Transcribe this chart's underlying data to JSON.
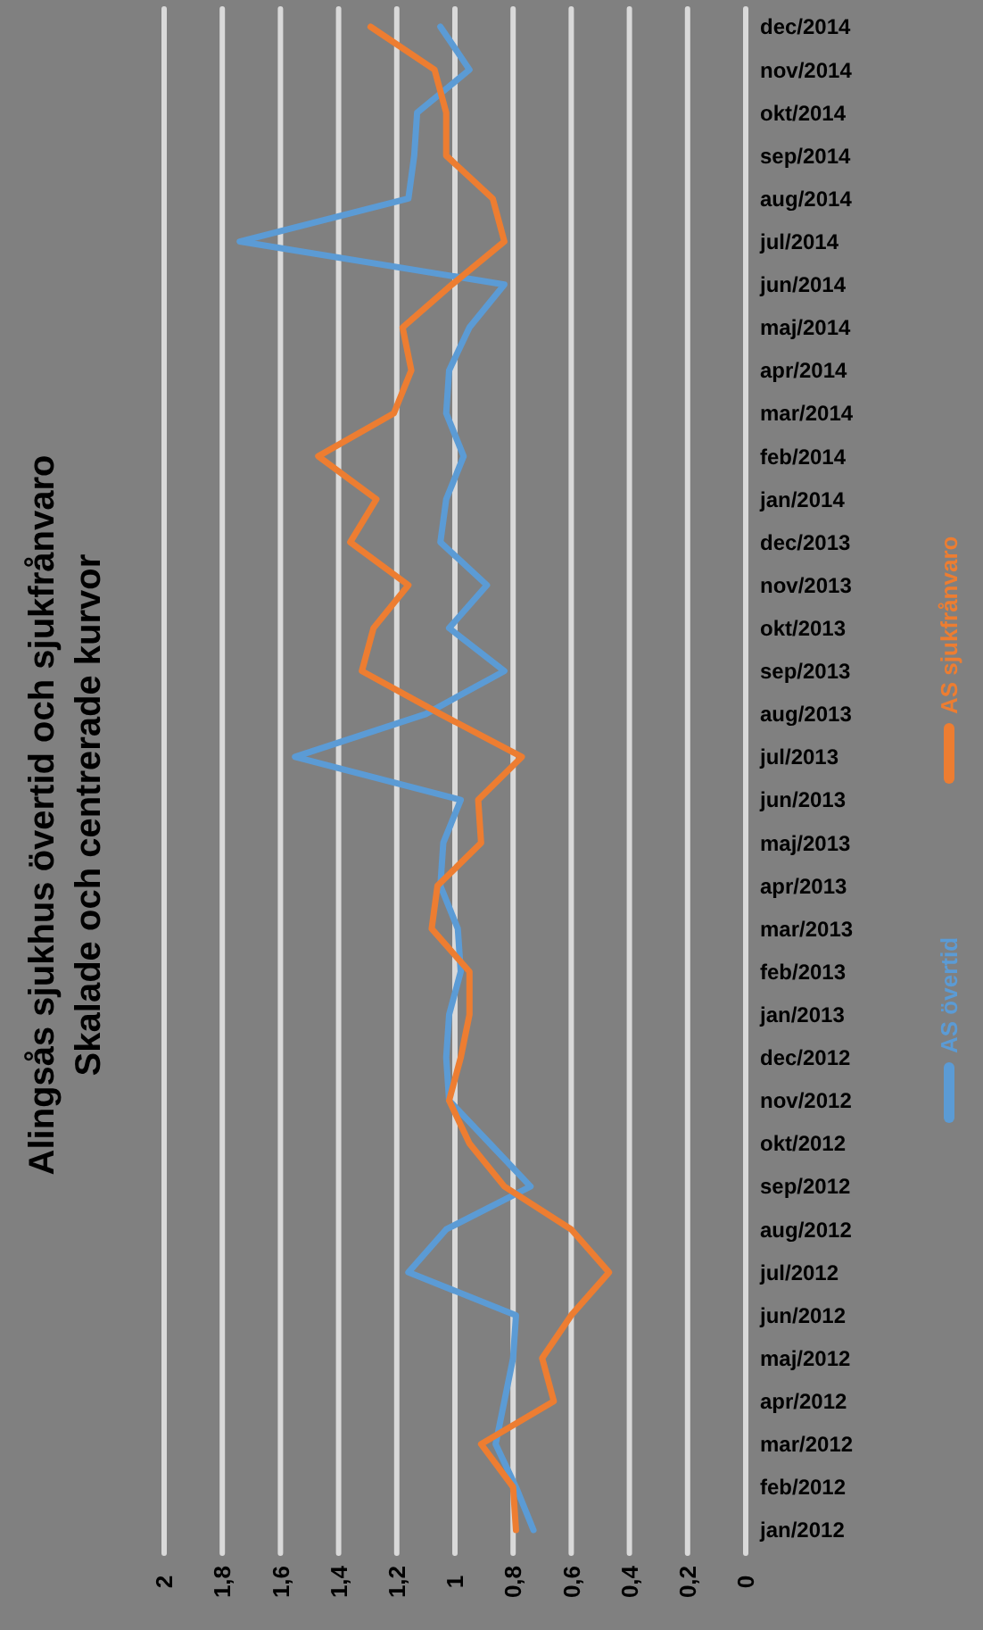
{
  "chart_data": {
    "type": "line",
    "orientation": "horizontal",
    "title": "Alingsås sjukhus övertid och sjukfrånvaro",
    "subtitle": "Skalade och centrerade kurvor",
    "categories": [
      "dec/2014",
      "nov/2014",
      "okt/2014",
      "sep/2014",
      "aug/2014",
      "jul/2014",
      "jun/2014",
      "maj/2014",
      "apr/2014",
      "mar/2014",
      "feb/2014",
      "jan/2014",
      "dec/2013",
      "nov/2013",
      "okt/2013",
      "sep/2013",
      "aug/2013",
      "jul/2013",
      "jun/2013",
      "maj/2013",
      "apr/2013",
      "mar/2013",
      "feb/2013",
      "jan/2013",
      "dec/2012",
      "nov/2012",
      "okt/2012",
      "sep/2012",
      "aug/2012",
      "jul/2012",
      "jun/2012",
      "maj/2012",
      "apr/2012",
      "mar/2012",
      "feb/2012",
      "jan/2012"
    ],
    "series": [
      {
        "name": "AS övertid",
        "color": "#5b9bd5",
        "values": [
          1.05,
          0.95,
          1.13,
          1.14,
          1.16,
          1.74,
          0.83,
          0.95,
          1.02,
          1.03,
          0.97,
          1.03,
          1.05,
          0.89,
          1.02,
          0.83,
          1.1,
          1.55,
          0.98,
          1.04,
          1.05,
          0.99,
          0.98,
          1.02,
          1.03,
          1.02,
          0.88,
          0.74,
          1.03,
          1.16,
          0.79,
          0.8,
          0.83,
          0.86,
          0.79,
          0.73
        ]
      },
      {
        "name": "AS sjukfrånvaro",
        "color": "#ed7d31",
        "values": [
          1.29,
          1.07,
          1.03,
          1.03,
          0.87,
          0.83,
          1.01,
          1.18,
          1.15,
          1.21,
          1.47,
          1.27,
          1.36,
          1.16,
          1.28,
          1.32,
          1.05,
          0.77,
          0.92,
          0.91,
          1.06,
          1.08,
          0.95,
          0.95,
          0.98,
          1.02,
          0.95,
          0.83,
          0.6,
          0.47,
          0.6,
          0.7,
          0.66,
          0.91,
          0.8,
          0.79
        ]
      }
    ],
    "xlim": [
      2,
      0
    ],
    "xticks": [
      {
        "value": 2,
        "label": "2"
      },
      {
        "value": 1.8,
        "label": "1,8"
      },
      {
        "value": 1.6,
        "label": "1,6"
      },
      {
        "value": 1.4,
        "label": "1,4"
      },
      {
        "value": 1.2,
        "label": "1,2"
      },
      {
        "value": 1,
        "label": "1"
      },
      {
        "value": 0.8,
        "label": "0,8"
      },
      {
        "value": 0.6,
        "label": "0,6"
      },
      {
        "value": 0.4,
        "label": "0,4"
      },
      {
        "value": 0.2,
        "label": "0,2"
      },
      {
        "value": 0,
        "label": "0"
      }
    ],
    "grid": "x",
    "legend": "right"
  }
}
